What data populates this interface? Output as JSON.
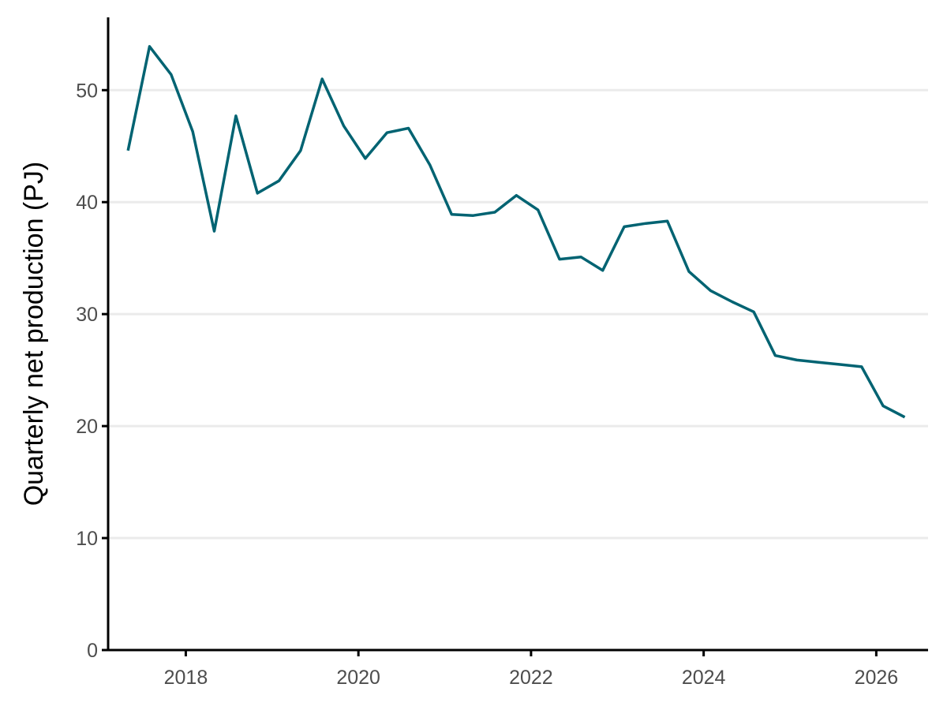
{
  "chart_data": {
    "type": "line",
    "title": "",
    "xlabel": "",
    "ylabel": "Quarterly net production (PJ)",
    "xlim": [
      2017.1,
      2026.6
    ],
    "ylim": [
      0,
      56.5
    ],
    "x_ticks": [
      2018,
      2020,
      2022,
      2024,
      2026
    ],
    "x_tick_labels": [
      "2018",
      "2020",
      "2022",
      "2024",
      "2026"
    ],
    "y_ticks": [
      0,
      10,
      20,
      30,
      40,
      50
    ],
    "y_tick_labels": [
      "0",
      "10",
      "20",
      "30",
      "40",
      "50"
    ],
    "grid": "horizontal major",
    "legend": "none",
    "line_color": "#006372",
    "series": [
      {
        "x": [
          2017.33,
          2017.58,
          2017.83,
          2018.08,
          2018.33,
          2018.58,
          2018.83,
          2019.08,
          2019.33,
          2019.58,
          2019.83,
          2020.08,
          2020.33,
          2020.58,
          2020.83,
          2021.08,
          2021.33,
          2021.58,
          2021.83,
          2022.08,
          2022.33,
          2022.58,
          2022.83,
          2023.08,
          2023.33,
          2023.58,
          2023.83,
          2024.08,
          2024.33,
          2024.58,
          2024.83,
          2025.08,
          2025.33,
          2025.58,
          2025.83,
          2026.08,
          2026.33
        ],
        "values": [
          44.6,
          53.9,
          51.4,
          46.3,
          37.4,
          47.7,
          40.8,
          41.9,
          44.6,
          51.0,
          46.8,
          43.9,
          46.2,
          46.6,
          43.3,
          38.9,
          38.8,
          39.1,
          40.6,
          39.3,
          34.9,
          35.1,
          33.9,
          37.8,
          38.1,
          38.3,
          33.8,
          32.1,
          31.1,
          30.2,
          26.3,
          25.9,
          25.7,
          25.5,
          25.3,
          21.8,
          20.8
        ]
      }
    ]
  }
}
